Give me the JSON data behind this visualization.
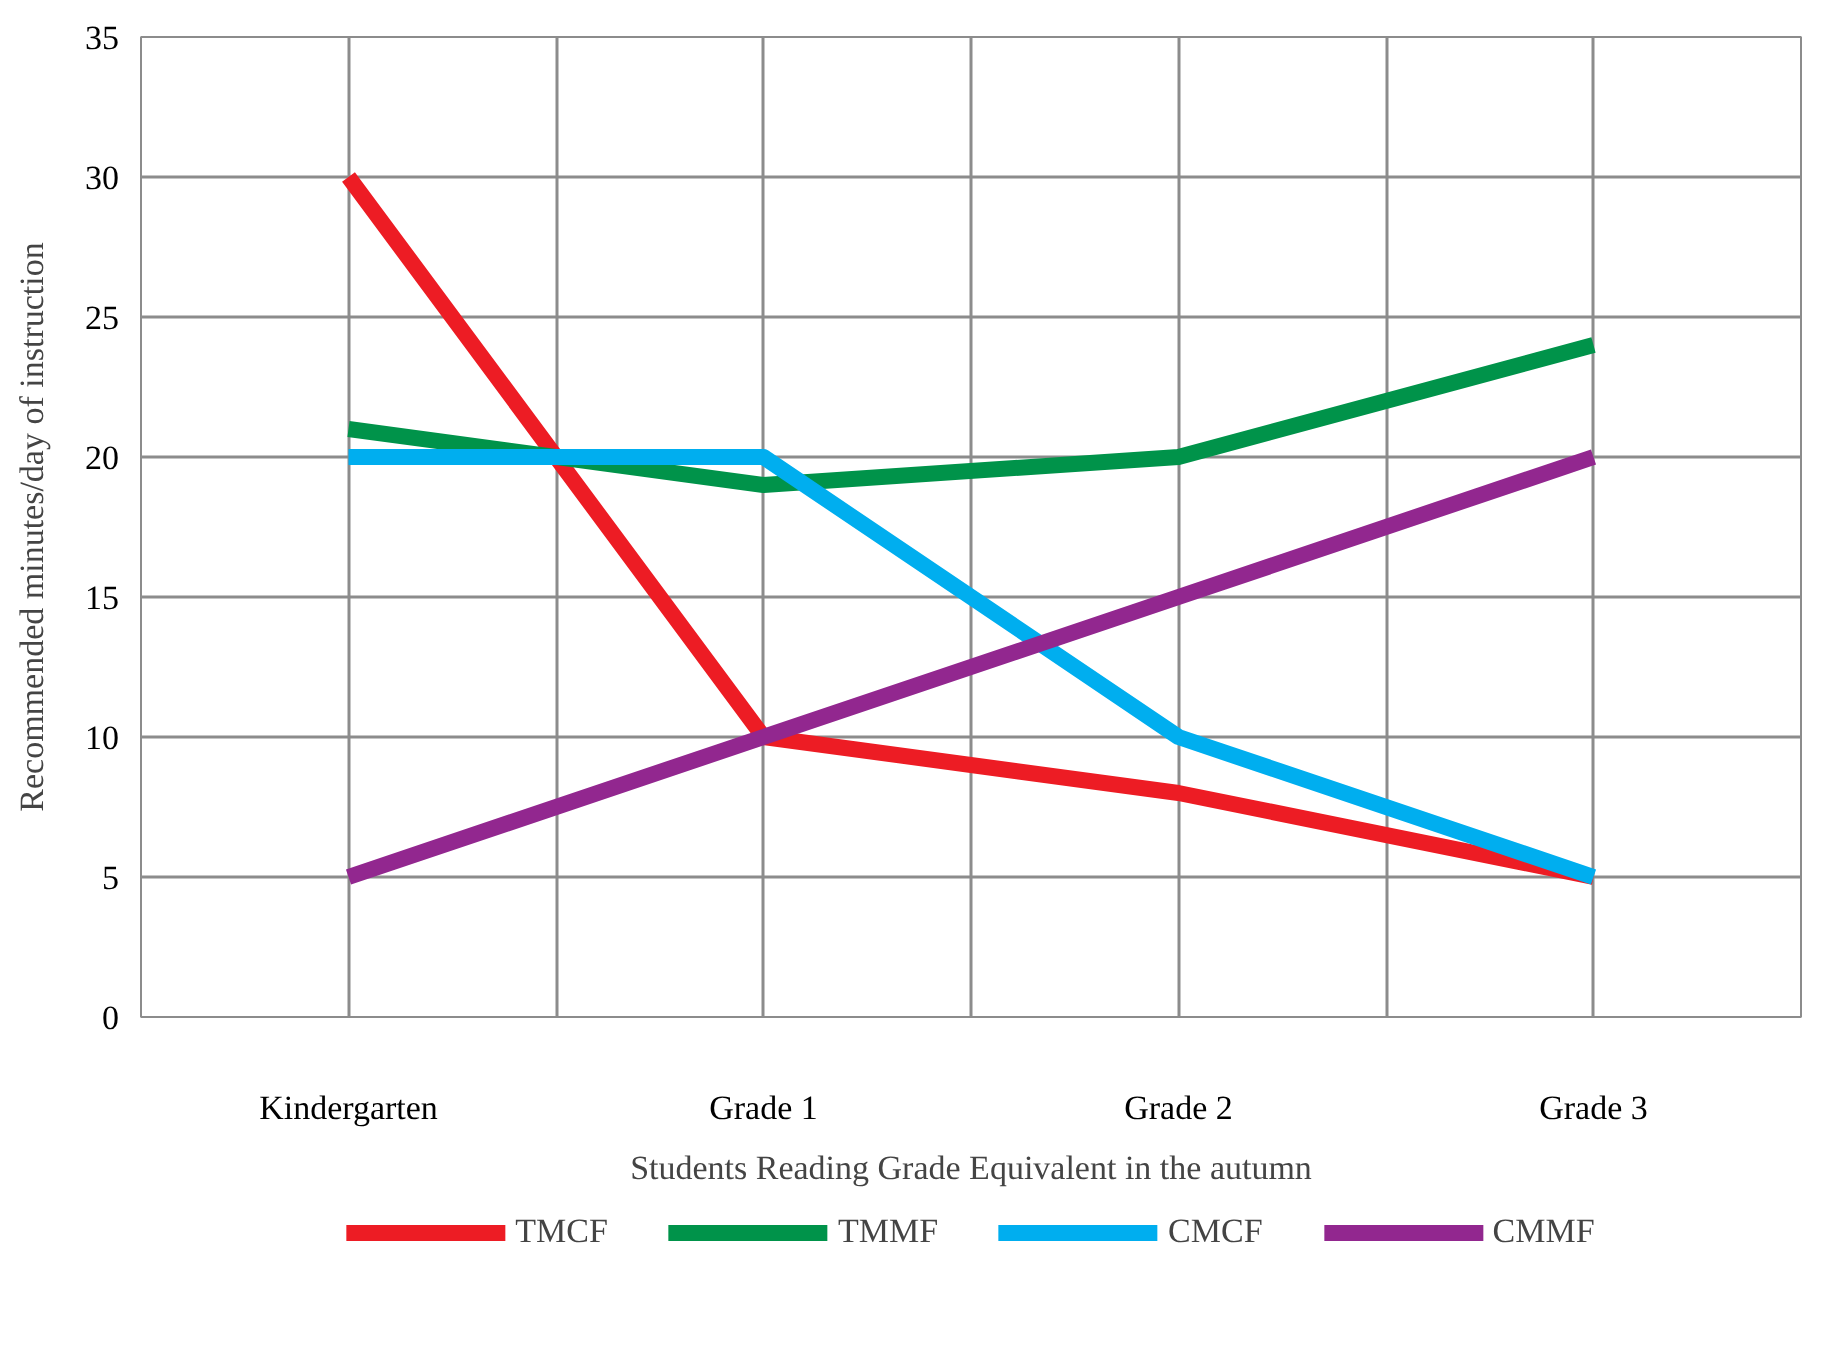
{
  "chart_data": {
    "type": "line",
    "xlabel": "Students Reading Grade Equivalent in the autumn",
    "ylabel": "Recommended minutes/day of instruction",
    "categories": [
      "Kindergarten",
      "Grade 1",
      "Grade 2",
      "Grade 3"
    ],
    "series": [
      {
        "name": "TMCF",
        "color": "#ed1c24",
        "values": [
          30,
          10,
          8,
          5
        ]
      },
      {
        "name": "TMMF",
        "color": "#00934a",
        "values": [
          21,
          19,
          20,
          24
        ]
      },
      {
        "name": "CMCF",
        "color": "#00aeef",
        "values": [
          20,
          20,
          10,
          5
        ]
      },
      {
        "name": "CMMF",
        "color": "#92278f",
        "values": [
          5,
          10,
          15,
          20
        ]
      }
    ],
    "ylim": [
      0,
      35
    ],
    "yticks": [
      0,
      5,
      10,
      15,
      20,
      25,
      30,
      35
    ],
    "grid": true,
    "legend": "bottom",
    "line_style": "solid",
    "marker": "none"
  }
}
